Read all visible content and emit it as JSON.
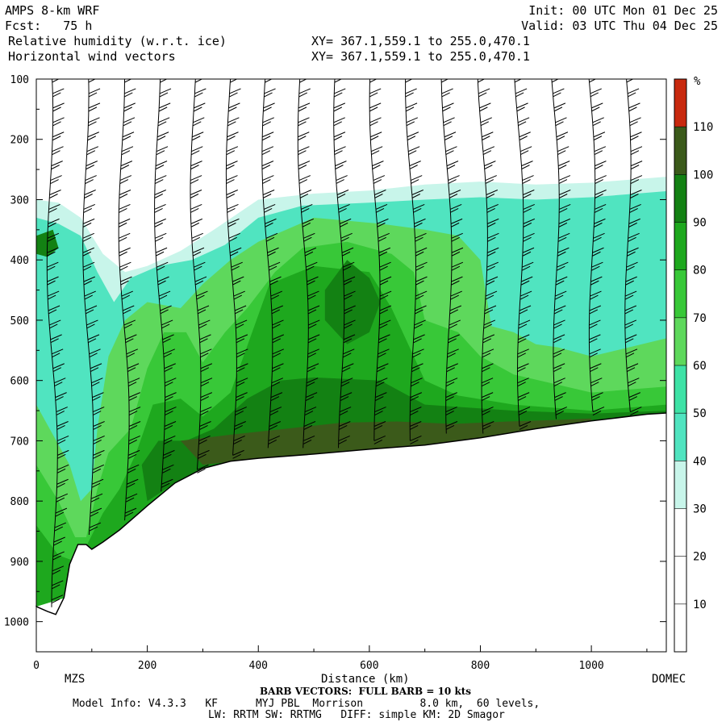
{
  "header": {
    "model": "AMPS 8-km WRF",
    "forecast": "Fcst:   75 h",
    "field": "Relative humidity (w.r.t. ice)",
    "vectors": "Horizontal wind vectors",
    "init": "Init: 00 UTC Mon 01 Dec 25",
    "valid": "Valid: 03 UTC Thu 04 Dec 25",
    "xy1": "XY= 367.1,559.1 to 255.0,470.1",
    "xy2": "XY= 367.1,559.1 to 255.0,470.1"
  },
  "footer": {
    "barb_note": "BARB VECTORS:  FULL BARB = 10 kts",
    "model_info": "Model Info: V4.3.3   KF      MYJ PBL  Morrison         8.0 km,  60 levels,",
    "physics": "LW: RRTM SW: RRTMG   DIFF: simple KM: 2D Smagor"
  },
  "chart_data": {
    "type": "heatmap",
    "xlabel": "Distance (km)",
    "ylabel": "",
    "x_range": [
      0,
      1135
    ],
    "y_range": [
      1050,
      100
    ],
    "x_ticks": [
      0,
      200,
      400,
      600,
      800,
      1000
    ],
    "y_ticks": [
      100,
      200,
      300,
      400,
      500,
      600,
      700,
      800,
      900,
      1000
    ],
    "endpoint_labels": {
      "left": "MZS",
      "right": "DOMEC"
    },
    "colorbar": {
      "unit": "%",
      "tick_labels": [
        10,
        20,
        30,
        40,
        50,
        60,
        70,
        80,
        90,
        100,
        110
      ],
      "bins": [
        {
          "from": 0,
          "to": 30,
          "color": "#ffffff"
        },
        {
          "from": 30,
          "to": 40,
          "color": "#c8f5ea"
        },
        {
          "from": 40,
          "to": 50,
          "color": "#50e4c0"
        },
        {
          "from": 50,
          "to": 60,
          "color": "#3ee2a6"
        },
        {
          "from": 60,
          "to": 70,
          "color": "#5ed85c"
        },
        {
          "from": 70,
          "to": 80,
          "color": "#38c838"
        },
        {
          "from": 80,
          "to": 90,
          "color": "#1ea81e"
        },
        {
          "from": 90,
          "to": 100,
          "color": "#138113"
        },
        {
          "from": 100,
          "to": 110,
          "color": "#3b5a1a"
        },
        {
          "from": 110,
          "to": 120,
          "color": "#c8290e"
        }
      ]
    },
    "terrain_surface": [
      {
        "x": 0,
        "p": 975
      },
      {
        "x": 20,
        "p": 983
      },
      {
        "x": 35,
        "p": 988
      },
      {
        "x": 50,
        "p": 960
      },
      {
        "x": 60,
        "p": 905
      },
      {
        "x": 75,
        "p": 872
      },
      {
        "x": 90,
        "p": 872
      },
      {
        "x": 100,
        "p": 880
      },
      {
        "x": 120,
        "p": 868
      },
      {
        "x": 150,
        "p": 848
      },
      {
        "x": 200,
        "p": 808
      },
      {
        "x": 250,
        "p": 770
      },
      {
        "x": 300,
        "p": 746
      },
      {
        "x": 350,
        "p": 734
      },
      {
        "x": 400,
        "p": 729
      },
      {
        "x": 500,
        "p": 722
      },
      {
        "x": 600,
        "p": 714
      },
      {
        "x": 700,
        "p": 707
      },
      {
        "x": 800,
        "p": 695
      },
      {
        "x": 900,
        "p": 680
      },
      {
        "x": 1000,
        "p": 667
      },
      {
        "x": 1100,
        "p": 656
      },
      {
        "x": 1135,
        "p": 654
      }
    ],
    "rh_regions": [
      {
        "level": 30,
        "points": [
          [
            0,
            300
          ],
          [
            40,
            305
          ],
          [
            80,
            330
          ],
          [
            120,
            390
          ],
          [
            160,
            420
          ],
          [
            200,
            410
          ],
          [
            260,
            385
          ],
          [
            320,
            350
          ],
          [
            400,
            300
          ],
          [
            500,
            290
          ],
          [
            600,
            285
          ],
          [
            700,
            275
          ],
          [
            800,
            270
          ],
          [
            900,
            275
          ],
          [
            1000,
            272
          ],
          [
            1135,
            262
          ],
          [
            1135,
            654
          ],
          [
            0,
            975
          ]
        ]
      },
      {
        "level": 40,
        "points": [
          [
            0,
            330
          ],
          [
            40,
            340
          ],
          [
            80,
            360
          ],
          [
            110,
            420
          ],
          [
            140,
            470
          ],
          [
            170,
            430
          ],
          [
            220,
            410
          ],
          [
            280,
            400
          ],
          [
            340,
            375
          ],
          [
            400,
            330
          ],
          [
            480,
            310
          ],
          [
            600,
            305
          ],
          [
            700,
            300
          ],
          [
            800,
            296
          ],
          [
            900,
            300
          ],
          [
            1000,
            296
          ],
          [
            1135,
            286
          ],
          [
            1135,
            654
          ],
          [
            0,
            975
          ]
        ]
      },
      {
        "level": 60,
        "points": [
          [
            0,
            640
          ],
          [
            30,
            690
          ],
          [
            60,
            740
          ],
          [
            80,
            800
          ],
          [
            100,
            780
          ],
          [
            110,
            680
          ],
          [
            130,
            560
          ],
          [
            160,
            500
          ],
          [
            200,
            470
          ],
          [
            260,
            480
          ],
          [
            300,
            440
          ],
          [
            350,
            400
          ],
          [
            400,
            370
          ],
          [
            500,
            330
          ],
          [
            620,
            340
          ],
          [
            700,
            350
          ],
          [
            760,
            360
          ],
          [
            800,
            400
          ],
          [
            820,
            510
          ],
          [
            860,
            520
          ],
          [
            900,
            540
          ],
          [
            940,
            545
          ],
          [
            1000,
            560
          ],
          [
            1135,
            530
          ],
          [
            1135,
            654
          ],
          [
            0,
            975
          ]
        ]
      },
      {
        "level": 70,
        "points": [
          [
            0,
            740
          ],
          [
            40,
            800
          ],
          [
            70,
            860
          ],
          [
            90,
            860
          ],
          [
            110,
            780
          ],
          [
            130,
            720
          ],
          [
            170,
            680
          ],
          [
            200,
            580
          ],
          [
            230,
            520
          ],
          [
            270,
            520
          ],
          [
            300,
            570
          ],
          [
            340,
            520
          ],
          [
            380,
            480
          ],
          [
            430,
            420
          ],
          [
            480,
            380
          ],
          [
            560,
            370
          ],
          [
            640,
            390
          ],
          [
            680,
            420
          ],
          [
            700,
            500
          ],
          [
            760,
            520
          ],
          [
            800,
            560
          ],
          [
            860,
            590
          ],
          [
            1000,
            620
          ],
          [
            1135,
            610
          ],
          [
            1135,
            654
          ],
          [
            0,
            975
          ]
        ]
      },
      {
        "level": 80,
        "points": [
          [
            0,
            840
          ],
          [
            40,
            890
          ],
          [
            70,
            900
          ],
          [
            90,
            875
          ],
          [
            120,
            820
          ],
          [
            150,
            780
          ],
          [
            180,
            720
          ],
          [
            210,
            640
          ],
          [
            260,
            630
          ],
          [
            300,
            660
          ],
          [
            350,
            620
          ],
          [
            420,
            440
          ],
          [
            500,
            410
          ],
          [
            600,
            420
          ],
          [
            640,
            480
          ],
          [
            700,
            600
          ],
          [
            760,
            625
          ],
          [
            860,
            640
          ],
          [
            1000,
            650
          ],
          [
            1135,
            640
          ],
          [
            1135,
            654
          ],
          [
            0,
            975
          ]
        ]
      },
      {
        "level": 90,
        "points": [
          [
            190,
            740
          ],
          [
            220,
            700
          ],
          [
            270,
            700
          ],
          [
            320,
            680
          ],
          [
            380,
            630
          ],
          [
            440,
            600
          ],
          [
            500,
            595
          ],
          [
            620,
            600
          ],
          [
            700,
            640
          ],
          [
            860,
            650
          ],
          [
            1000,
            655
          ],
          [
            1135,
            650
          ],
          [
            1135,
            654
          ],
          [
            1000,
            667
          ],
          [
            800,
            695
          ],
          [
            600,
            714
          ],
          [
            400,
            729
          ],
          [
            300,
            746
          ],
          [
            250,
            770
          ],
          [
            200,
            800
          ]
        ]
      },
      {
        "level": 90,
        "points": [
          [
            520,
            450
          ],
          [
            560,
            400
          ],
          [
            600,
            430
          ],
          [
            620,
            470
          ],
          [
            600,
            520
          ],
          [
            560,
            540
          ],
          [
            520,
            500
          ]
        ]
      },
      {
        "level": 100,
        "points": [
          [
            260,
            700
          ],
          [
            350,
            690
          ],
          [
            450,
            680
          ],
          [
            550,
            670
          ],
          [
            650,
            668
          ],
          [
            750,
            672
          ],
          [
            850,
            668
          ],
          [
            950,
            665
          ],
          [
            1000,
            663
          ],
          [
            1000,
            667
          ],
          [
            900,
            680
          ],
          [
            800,
            695
          ],
          [
            700,
            707
          ],
          [
            600,
            714
          ],
          [
            500,
            722
          ],
          [
            400,
            729
          ],
          [
            300,
            740
          ]
        ]
      },
      {
        "level": 90,
        "points": [
          [
            0,
            360
          ],
          [
            30,
            350
          ],
          [
            40,
            380
          ],
          [
            20,
            395
          ],
          [
            0,
            390
          ]
        ]
      }
    ]
  }
}
